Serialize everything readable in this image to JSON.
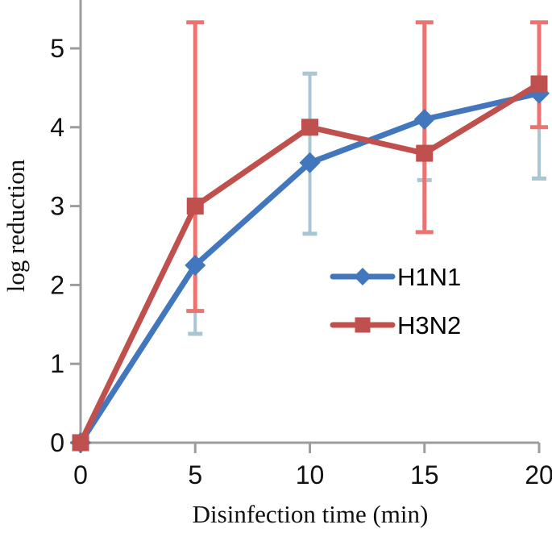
{
  "figure": {
    "background": "#ffffff",
    "axis_color": "#9d9d9d",
    "text_color": "#111111"
  },
  "chart_data": {
    "type": "line",
    "title": "",
    "xlabel": "Disinfection time (min)",
    "ylabel": "log reduction",
    "x": [
      0,
      5,
      10,
      15,
      20
    ],
    "xlim": [
      0,
      20
    ],
    "ylim": [
      0,
      5.6
    ],
    "x_ticks": [
      0,
      5,
      10,
      15,
      20
    ],
    "y_ticks": [
      0,
      1,
      2,
      3,
      4,
      5
    ],
    "grid": false,
    "legend_position": "inside-right",
    "series": [
      {
        "name": "H1N1",
        "color": "#4277BE",
        "marker": "diamond",
        "line_width": 7,
        "values": [
          0,
          2.25,
          3.55,
          4.1,
          4.43
        ],
        "error_bar_color": "#A9C7D2",
        "error_bars": [
          {
            "x": 5,
            "low": 1.38,
            "high": 3.1,
            "cap_low": true,
            "cap_high": false
          },
          {
            "x": 10,
            "low": 2.65,
            "high": 4.68,
            "cap_low": true,
            "cap_high": true
          },
          {
            "x": 15,
            "low": 3.33,
            "high": 4.85,
            "cap_low": true,
            "cap_high": false
          },
          {
            "x": 20,
            "low": 3.35,
            "high": 5.3,
            "cap_low": true,
            "cap_high": false
          }
        ]
      },
      {
        "name": "H3N2",
        "color": "#C0504D",
        "marker": "square",
        "line_width": 7,
        "values": [
          0,
          3.0,
          4.0,
          3.67,
          4.55
        ],
        "error_bar_color": "#EC7370",
        "error_bars": [
          {
            "x": 5,
            "low": 1.67,
            "high": 5.33,
            "cap_low": true,
            "cap_high": true
          },
          {
            "x": 15,
            "low": 2.67,
            "high": 5.33,
            "cap_low": true,
            "cap_high": true
          },
          {
            "x": 20,
            "low": 4.0,
            "high": 5.33,
            "cap_low": true,
            "cap_high": true
          }
        ]
      }
    ]
  }
}
